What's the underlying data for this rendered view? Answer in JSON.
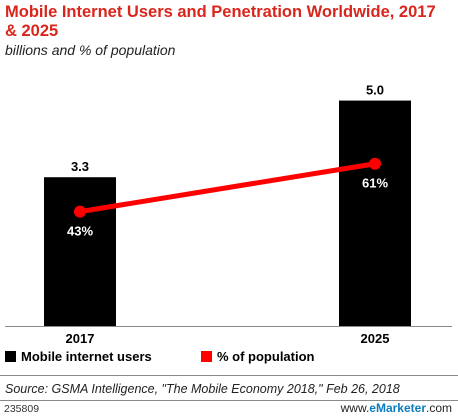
{
  "title": "Mobile Internet Users and Penetration Worldwide, 2017 & 2025",
  "subtitle": "billions and % of population",
  "chart_data": {
    "type": "bar",
    "categories": [
      "2017",
      "2025"
    ],
    "series": [
      {
        "name": "Mobile internet users",
        "type": "bar",
        "values": [
          3.3,
          5.0
        ],
        "labels": [
          "3.3",
          "5.0"
        ],
        "color": "#000000"
      },
      {
        "name": "% of population",
        "type": "line",
        "values": [
          43,
          61
        ],
        "labels": [
          "43%",
          "61%"
        ],
        "color": "#ff0000"
      }
    ],
    "bar_ylim": [
      0,
      5.9
    ],
    "line_ylim": [
      0,
      100
    ],
    "grid": false,
    "legend": "bottom"
  },
  "legend": {
    "bar_label": "Mobile internet users",
    "line_label": "% of population"
  },
  "footer": {
    "source": "Source: GSMA Intelligence, \"The Mobile Economy 2018,\" Feb 26, 2018",
    "chart_id": "235809",
    "brand_prefix": "www.",
    "brand_name": "eMarketer",
    "brand_suffix": ".com"
  }
}
